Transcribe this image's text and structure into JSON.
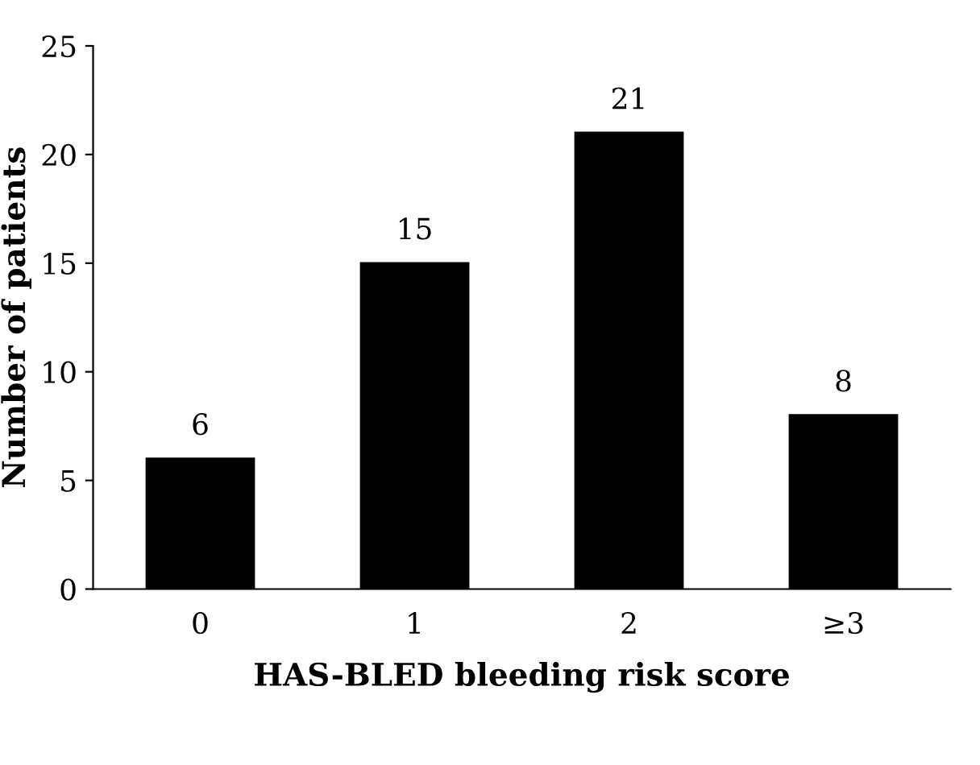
{
  "chart_data": {
    "type": "bar",
    "xlabel": "HAS-BLED bleeding risk score",
    "ylabel": "Number of patients",
    "categories": [
      "0",
      "1",
      "2",
      "≥3"
    ],
    "values": [
      6,
      15,
      21,
      8
    ],
    "color": "#000000",
    "ylim": [
      0,
      25
    ],
    "yticks": [
      0,
      5,
      10,
      15,
      20,
      25
    ],
    "grid": false,
    "data_labels": true
  }
}
